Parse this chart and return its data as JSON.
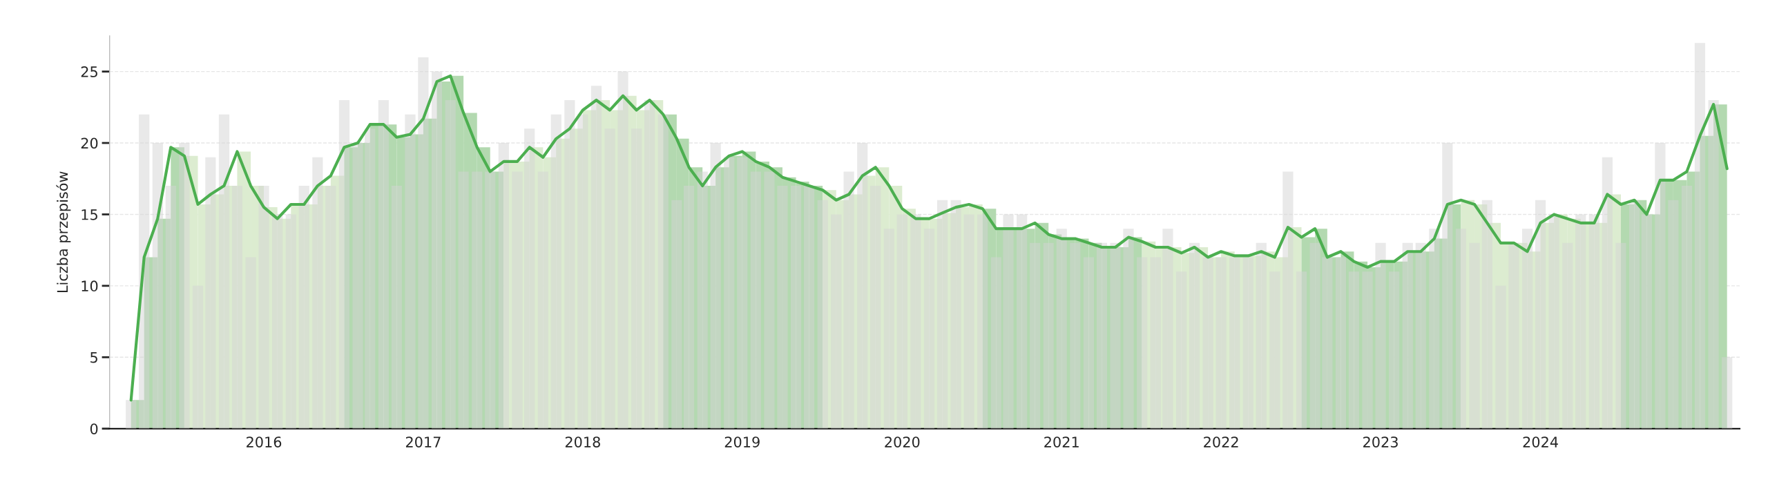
{
  "chart_data": {
    "type": "bar",
    "ylabel": "Liczba przepisów",
    "x": [
      "2015-09",
      "2015-10",
      "2015-11",
      "2015-12",
      "2016-01",
      "2016-02",
      "2016-03",
      "2016-04",
      "2016-05",
      "2016-06",
      "2016-07",
      "2016-08",
      "2016-09",
      "2016-10",
      "2016-11",
      "2016-12",
      "2017-01",
      "2017-02",
      "2017-03",
      "2017-04",
      "2017-05",
      "2017-06",
      "2017-07",
      "2017-08",
      "2017-09",
      "2017-10",
      "2017-11",
      "2017-12",
      "2018-01",
      "2018-02",
      "2018-03",
      "2018-04",
      "2018-05",
      "2018-06",
      "2018-07",
      "2018-08",
      "2018-09",
      "2018-10",
      "2018-11",
      "2018-12",
      "2019-01",
      "2019-02",
      "2019-03",
      "2019-04",
      "2019-05",
      "2019-06",
      "2019-07",
      "2019-08",
      "2019-09",
      "2019-10",
      "2019-11",
      "2019-12",
      "2020-01",
      "2020-02",
      "2020-03",
      "2020-04",
      "2020-05",
      "2020-06",
      "2020-07",
      "2020-08",
      "2020-09",
      "2020-10",
      "2020-11",
      "2020-12",
      "2021-01",
      "2021-02",
      "2021-03",
      "2021-04",
      "2021-05",
      "2021-06",
      "2021-07",
      "2021-08",
      "2021-09",
      "2021-10",
      "2021-11",
      "2021-12",
      "2022-01",
      "2022-02",
      "2022-03",
      "2022-04",
      "2022-05",
      "2022-06",
      "2022-07",
      "2022-08",
      "2022-09",
      "2022-10",
      "2022-11",
      "2022-12",
      "2023-01",
      "2023-02",
      "2023-03",
      "2023-04",
      "2023-05",
      "2023-06",
      "2023-07",
      "2023-08",
      "2023-09",
      "2023-10",
      "2023-11",
      "2023-12",
      "2024-01",
      "2024-02",
      "2024-03",
      "2024-04",
      "2024-05",
      "2024-06",
      "2024-07",
      "2024-08",
      "2024-09",
      "2024-10",
      "2024-11",
      "2024-12",
      "2025-01",
      "2025-02",
      "2025-03",
      "2025-04",
      "2025-05",
      "2025-06",
      "2025-07",
      "2025-08",
      "2025-09"
    ],
    "series": [
      {
        "color": "#d4d4d4",
        "values": [
          2,
          22,
          20,
          17,
          20,
          10,
          19,
          22,
          17,
          12,
          17,
          15,
          15,
          17,
          19,
          17,
          23,
          20,
          21,
          23,
          17,
          22,
          26,
          25,
          23,
          18,
          18,
          18,
          20,
          18,
          21,
          18,
          22,
          23,
          22,
          24,
          21,
          25,
          21,
          23,
          22,
          16,
          17,
          18,
          20,
          19,
          19,
          18,
          18,
          17,
          17,
          17,
          16,
          15,
          18,
          20,
          17,
          14,
          15,
          15,
          14,
          16,
          16,
          15,
          15,
          12,
          15,
          15,
          13,
          13,
          14,
          13,
          12,
          13,
          13,
          14,
          12,
          12,
          14,
          11,
          13,
          12,
          12,
          12,
          12,
          13,
          11,
          18,
          11,
          13,
          12,
          12,
          11,
          11,
          13,
          11,
          13,
          13,
          14,
          20,
          14,
          13,
          16,
          10,
          13,
          14,
          16,
          15,
          13,
          15,
          15,
          19,
          13,
          16,
          15,
          20,
          16,
          17,
          27,
          23,
          5
        ]
      },
      {
        "type": "bar",
        "colors": [
          "#b3d9b0",
          "#b3d9b0",
          "#b3d9b0",
          "#b3d9b0",
          "#dcecd0",
          "#dcecd0",
          "#dcecd0",
          "#dcecd0",
          "#dcecd0",
          "#dcecd0",
          "#dcecd0",
          "#dcecd0",
          "#dcecd0",
          "#dcecd0",
          "#dcecd0",
          "#dcecd0",
          "#b3d9b0",
          "#b3d9b0",
          "#b3d9b0",
          "#b3d9b0",
          "#b3d9b0",
          "#b3d9b0",
          "#b3d9b0",
          "#b3d9b0",
          "#b3d9b0",
          "#b3d9b0",
          "#b3d9b0",
          "#b3d9b0",
          "#dcecd0",
          "#dcecd0",
          "#dcecd0",
          "#dcecd0",
          "#dcecd0",
          "#dcecd0",
          "#dcecd0",
          "#dcecd0",
          "#dcecd0",
          "#dcecd0",
          "#dcecd0",
          "#dcecd0",
          "#b3d9b0",
          "#b3d9b0",
          "#b3d9b0",
          "#b3d9b0",
          "#b3d9b0",
          "#b3d9b0",
          "#b3d9b0",
          "#b3d9b0",
          "#b3d9b0",
          "#b3d9b0",
          "#b3d9b0",
          "#b3d9b0",
          "#dcecd0",
          "#dcecd0",
          "#dcecd0",
          "#dcecd0",
          "#dcecd0",
          "#dcecd0",
          "#dcecd0",
          "#dcecd0",
          "#dcecd0",
          "#dcecd0",
          "#dcecd0",
          "#dcecd0",
          "#b3d9b0",
          "#b3d9b0",
          "#b3d9b0",
          "#b3d9b0",
          "#b3d9b0",
          "#b3d9b0",
          "#b3d9b0",
          "#b3d9b0",
          "#b3d9b0",
          "#b3d9b0",
          "#b3d9b0",
          "#b3d9b0",
          "#dcecd0",
          "#dcecd0",
          "#dcecd0",
          "#dcecd0",
          "#dcecd0",
          "#dcecd0",
          "#dcecd0",
          "#dcecd0",
          "#dcecd0",
          "#dcecd0",
          "#dcecd0",
          "#dcecd0",
          "#b3d9b0",
          "#b3d9b0",
          "#b3d9b0",
          "#b3d9b0",
          "#b3d9b0",
          "#b3d9b0",
          "#b3d9b0",
          "#b3d9b0",
          "#b3d9b0",
          "#b3d9b0",
          "#b3d9b0",
          "#b3d9b0",
          "#dcecd0",
          "#dcecd0",
          "#dcecd0",
          "#dcecd0",
          "#dcecd0",
          "#dcecd0",
          "#dcecd0",
          "#dcecd0",
          "#dcecd0",
          "#dcecd0",
          "#dcecd0",
          "#dcecd0",
          "#b3d9b0",
          "#b3d9b0",
          "#b3d9b0",
          "#b3d9b0",
          "#b3d9b0",
          "#b3d9b0",
          "#b3d9b0",
          "#b3d9b0",
          "#b3d9b0"
        ],
        "values": [
          2.0,
          12.0,
          14.7,
          19.7,
          19.1,
          15.7,
          16.4,
          17.0,
          19.4,
          17.0,
          15.5,
          14.7,
          15.7,
          15.7,
          17.0,
          17.7,
          19.7,
          20.0,
          21.3,
          21.3,
          20.4,
          20.6,
          21.7,
          24.3,
          24.7,
          22.1,
          19.7,
          18.0,
          18.7,
          18.7,
          19.7,
          19.0,
          20.3,
          21.0,
          22.3,
          23.0,
          22.3,
          23.3,
          22.3,
          23.0,
          22.0,
          20.3,
          18.3,
          17.0,
          18.3,
          19.1,
          19.4,
          18.7,
          18.3,
          17.6,
          17.3,
          17.0,
          16.7,
          16.0,
          16.4,
          17.7,
          18.3,
          17.0,
          15.4,
          14.7,
          14.7,
          15.1,
          15.5,
          15.7,
          15.4,
          14.0,
          14.0,
          14.0,
          14.4,
          13.6,
          13.3,
          13.3,
          13.0,
          12.7,
          12.7,
          13.4,
          13.1,
          12.7,
          12.7,
          12.3,
          12.7,
          12.0,
          12.4,
          12.1,
          12.1,
          12.4,
          12.0,
          14.1,
          13.4,
          14.0,
          12.0,
          12.4,
          11.7,
          11.3,
          11.7,
          11.7,
          12.4,
          12.4,
          13.3,
          15.7,
          16.0,
          15.7,
          14.4,
          13.0,
          13.0,
          12.4,
          14.4,
          15.0,
          14.7,
          14.4,
          14.4,
          16.4,
          15.7,
          16.0,
          15.0,
          17.4,
          17.4,
          18.0,
          20.5,
          22.7,
          null
        ]
      },
      {
        "type": "line",
        "color": "#4caf50",
        "values": [
          2.0,
          12.0,
          14.7,
          19.7,
          19.1,
          15.7,
          16.4,
          17.0,
          19.4,
          17.0,
          15.5,
          14.7,
          15.7,
          15.7,
          17.0,
          17.7,
          19.7,
          20.0,
          21.3,
          21.3,
          20.4,
          20.6,
          21.7,
          24.3,
          24.7,
          22.1,
          19.7,
          18.0,
          18.7,
          18.7,
          19.7,
          19.0,
          20.3,
          21.0,
          22.3,
          23.0,
          22.3,
          23.3,
          22.3,
          23.0,
          22.0,
          20.3,
          18.3,
          17.0,
          18.3,
          19.1,
          19.4,
          18.7,
          18.3,
          17.6,
          17.3,
          17.0,
          16.7,
          16.0,
          16.4,
          17.7,
          18.3,
          17.0,
          15.4,
          14.7,
          14.7,
          15.1,
          15.5,
          15.7,
          15.4,
          14.0,
          14.0,
          14.0,
          14.4,
          13.6,
          13.3,
          13.3,
          13.0,
          12.7,
          12.7,
          13.4,
          13.1,
          12.7,
          12.7,
          12.3,
          12.7,
          12.0,
          12.4,
          12.1,
          12.1,
          12.4,
          12.0,
          14.1,
          13.4,
          14.0,
          12.0,
          12.4,
          11.7,
          11.3,
          11.7,
          11.7,
          12.4,
          12.4,
          13.3,
          15.7,
          16.0,
          15.7,
          14.4,
          13.0,
          13.0,
          12.4,
          14.4,
          15.0,
          14.7,
          14.4,
          14.4,
          16.4,
          15.7,
          16.0,
          15.0,
          17.4,
          17.4,
          18.0,
          20.5,
          22.7,
          18.2
        ]
      }
    ],
    "xlim": [
      "2015-07-14",
      "2025-09-30"
    ],
    "xticks": [
      {
        "value": "2016-07-01",
        "label": "2016"
      },
      {
        "value": "2017-07-01",
        "label": "2017"
      },
      {
        "value": "2018-07-01",
        "label": "2018"
      },
      {
        "value": "2019-07-01",
        "label": "2019"
      },
      {
        "value": "2020-07-01",
        "label": "2020"
      },
      {
        "value": "2021-07-01",
        "label": "2021"
      },
      {
        "value": "2022-07-01",
        "label": "2022"
      },
      {
        "value": "2023-07-01",
        "label": "2023"
      },
      {
        "value": "2024-07-01",
        "label": "2024"
      }
    ],
    "ylim": [
      0,
      27.5
    ],
    "yticks": [
      0,
      5,
      10,
      15,
      20,
      25
    ],
    "grid": "y",
    "legend": false
  }
}
